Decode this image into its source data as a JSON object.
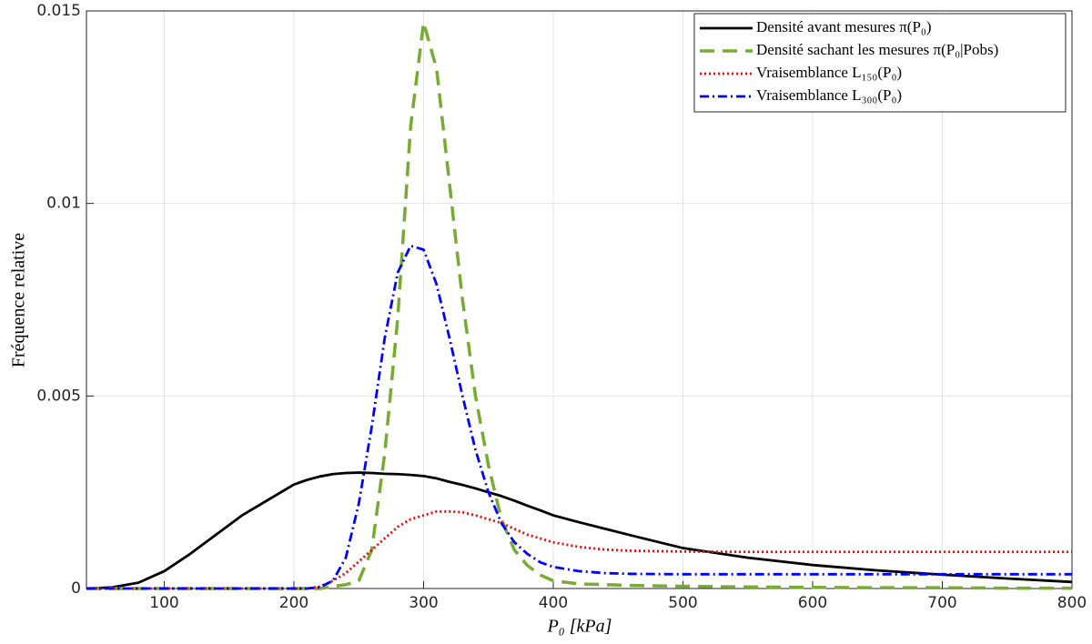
{
  "chart_data": {
    "type": "line",
    "xlabel": "P₀ [kPa]",
    "ylabel": "Fréquence relative",
    "x": [
      40,
      60,
      80,
      100,
      120,
      140,
      160,
      180,
      200,
      210,
      220,
      230,
      240,
      250,
      260,
      270,
      280,
      290,
      300,
      310,
      320,
      330,
      340,
      350,
      360,
      370,
      380,
      390,
      400,
      420,
      440,
      460,
      500,
      550,
      600,
      650,
      700,
      750,
      800
    ],
    "series": [
      {
        "name": "Densité avant mesures π(P₀)",
        "color": "#000000",
        "dash": "none",
        "values": [
          0,
          3e-05,
          0.00015,
          0.00045,
          0.0009,
          0.0014,
          0.0019,
          0.0023,
          0.0027,
          0.00282,
          0.00291,
          0.00297,
          0.003,
          0.00301,
          0.003,
          0.00298,
          0.00297,
          0.00295,
          0.00292,
          0.00286,
          0.00277,
          0.00269,
          0.0026,
          0.0025,
          0.0024,
          0.00228,
          0.00215,
          0.00203,
          0.0019,
          0.00172,
          0.00155,
          0.00138,
          0.00105,
          0.0008,
          0.00061,
          0.00047,
          0.00036,
          0.00026,
          0.00017
        ]
      },
      {
        "name": "Densité sachant les mesures π(P₀|Pobs)",
        "color": "#77ac30",
        "dash": "16 9",
        "values": [
          0,
          0,
          0,
          0,
          0,
          0,
          0,
          0,
          0,
          0,
          0,
          5e-05,
          0.0001,
          0.0002,
          0.001,
          0.0035,
          0.007,
          0.012,
          0.0147,
          0.0135,
          0.0105,
          0.0075,
          0.005,
          0.0032,
          0.0018,
          0.001,
          0.0006,
          0.00035,
          0.0002,
          0.00012,
          0.0001,
          8e-05,
          6e-05,
          4e-05,
          3e-05,
          2e-05,
          2e-05,
          1e-05,
          1e-05
        ]
      },
      {
        "name": "Vraisemblance L₁₅₀(P₀)",
        "color": "#ff0000",
        "dash": "2 3",
        "values": [
          0,
          0,
          0,
          0,
          0,
          0,
          0,
          0,
          0,
          0,
          5e-05,
          0.0002,
          0.0004,
          0.0007,
          0.001,
          0.0013,
          0.0016,
          0.0018,
          0.0019,
          0.002,
          0.002,
          0.00198,
          0.0019,
          0.0018,
          0.0017,
          0.00155,
          0.0014,
          0.0013,
          0.0012,
          0.00108,
          0.00101,
          0.00098,
          0.00096,
          0.00095,
          0.00095,
          0.00095,
          0.00095,
          0.00095,
          0.00095
        ]
      },
      {
        "name": "Vraisemblance L₃₀₀(P₀)",
        "color": "#0000ff",
        "dash": "10 4 2 4",
        "values": [
          0,
          0,
          0,
          0,
          0,
          0,
          0,
          0,
          0,
          0,
          3e-05,
          0.0002,
          0.0008,
          0.0022,
          0.0042,
          0.0065,
          0.0082,
          0.0089,
          0.0088,
          0.0079,
          0.0065,
          0.005,
          0.0036,
          0.0025,
          0.0017,
          0.0012,
          0.0009,
          0.00068,
          0.00056,
          0.00045,
          0.0004,
          0.00038,
          0.00037,
          0.00037,
          0.00037,
          0.00037,
          0.00037,
          0.00037,
          0.00037
        ]
      }
    ],
    "xlim": [
      40,
      800
    ],
    "xticks": [
      100,
      200,
      300,
      400,
      500,
      600,
      700,
      800
    ],
    "ylim": [
      0,
      0.015
    ],
    "yticks": [
      0,
      0.005,
      0.01,
      0.015
    ],
    "grid": true,
    "legend": "upper right"
  }
}
